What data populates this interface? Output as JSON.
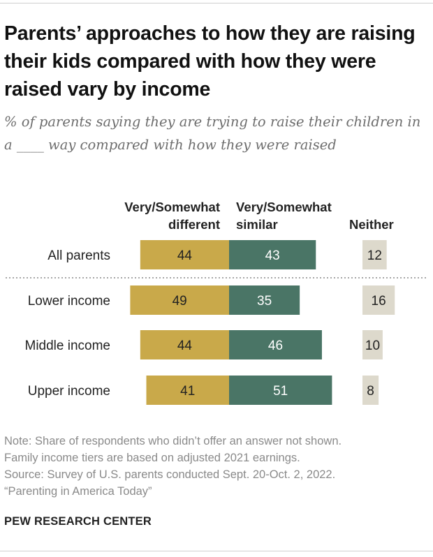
{
  "title": "Parents’ approaches to how they are raising their kids compared with how they were raised vary by income",
  "subtitle": "% of parents saying they are trying to raise their children in a ____ way compared with how they were raised",
  "headers": {
    "different_line1": "Very/Somewhat",
    "different_line2": "different",
    "similar_line1": "Very/Somewhat",
    "similar_line2": "similar",
    "neither": "Neither"
  },
  "colors": {
    "different": "#c9a94a",
    "similar": "#4a7566",
    "neither": "#ddd9cc"
  },
  "chart_data": {
    "type": "bar",
    "orientation": "horizontal-diverging",
    "categories": [
      "All parents",
      "Lower income",
      "Middle income",
      "Upper income"
    ],
    "series": [
      {
        "name": "Very/Somewhat different",
        "values": [
          44,
          49,
          44,
          41
        ]
      },
      {
        "name": "Very/Somewhat similar",
        "values": [
          43,
          35,
          46,
          51
        ]
      },
      {
        "name": "Neither",
        "values": [
          12,
          16,
          10,
          8
        ]
      }
    ],
    "separator_after": "All parents"
  },
  "notes": [
    "Note: Share of respondents who didn’t offer an answer not shown.",
    "Family income tiers are based on adjusted 2021 earnings.",
    "Source: Survey of U.S. parents conducted Sept. 20-Oct. 2, 2022.",
    "“Parenting in America Today”"
  ],
  "brand": "PEW RESEARCH CENTER"
}
